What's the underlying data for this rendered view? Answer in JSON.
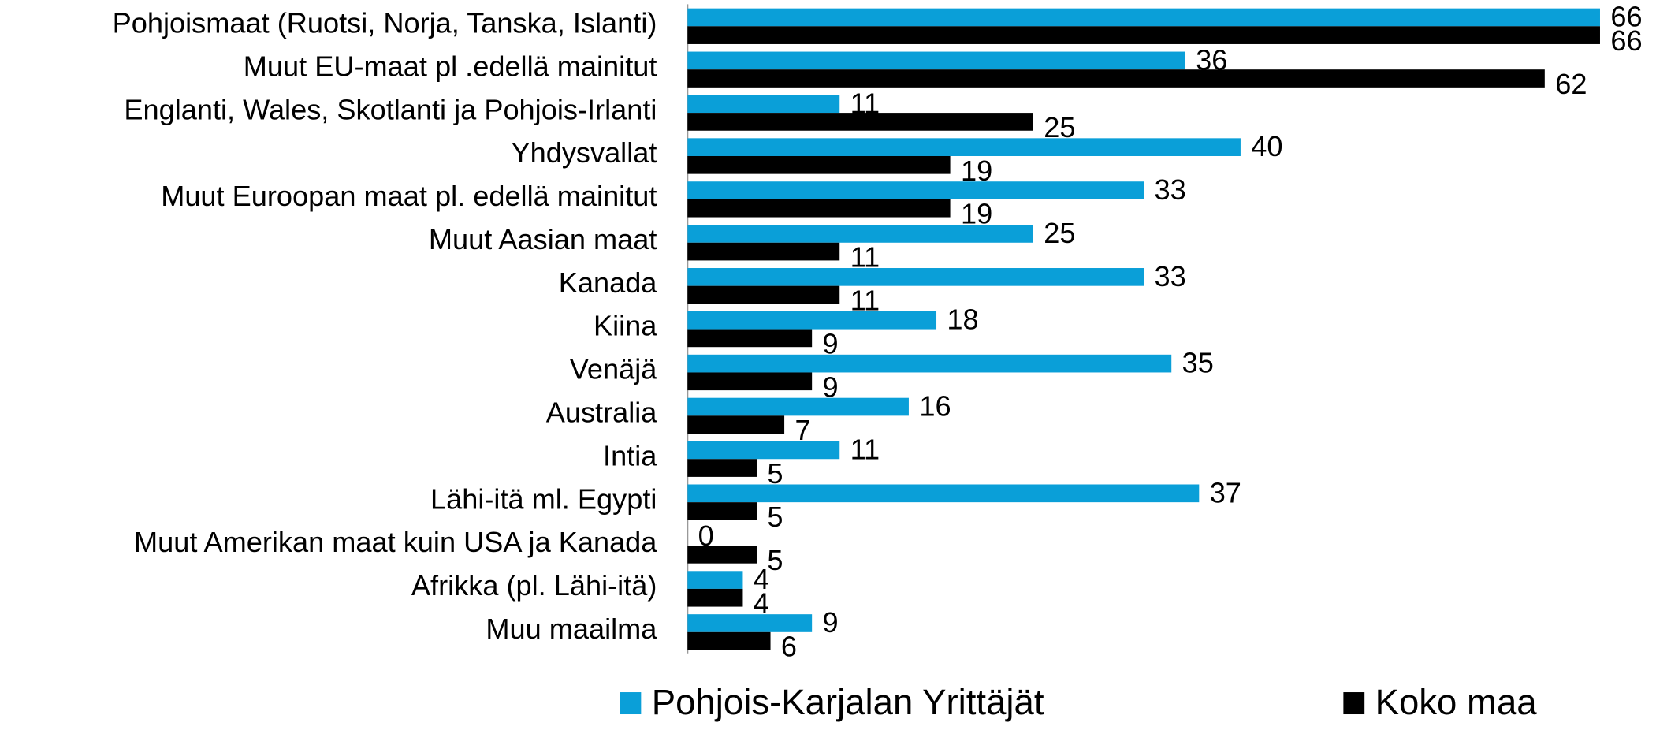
{
  "chart_data": {
    "type": "barh",
    "categories": [
      "Pohjoismaat (Ruotsi, Norja, Tanska, Islanti)",
      "Muut EU-maat pl .edellä mainitut",
      "Englanti, Wales, Skotlanti ja Pohjois-Irlanti",
      "Yhdysvallat",
      "Muut Euroopan maat pl. edellä mainitut",
      "Muut Aasian maat",
      "Kanada",
      "Kiina",
      "Venäjä",
      "Australia",
      "Intia",
      "Lähi-itä ml. Egypti",
      "Muut Amerikan maat kuin USA ja Kanada",
      "Afrikka (pl. Lähi-itä)",
      "Muu maailma"
    ],
    "series": [
      {
        "name": "Pohjois-Karjalan Yrittäjät",
        "color": "#0a9fd8",
        "values": [
          66,
          36,
          11,
          40,
          33,
          25,
          33,
          18,
          35,
          16,
          11,
          37,
          0,
          4,
          9
        ]
      },
      {
        "name": "Koko maa",
        "color": "#000000",
        "values": [
          66,
          62,
          25,
          19,
          19,
          11,
          11,
          9,
          9,
          7,
          5,
          5,
          5,
          4,
          6
        ]
      }
    ],
    "legend": "bottom"
  }
}
